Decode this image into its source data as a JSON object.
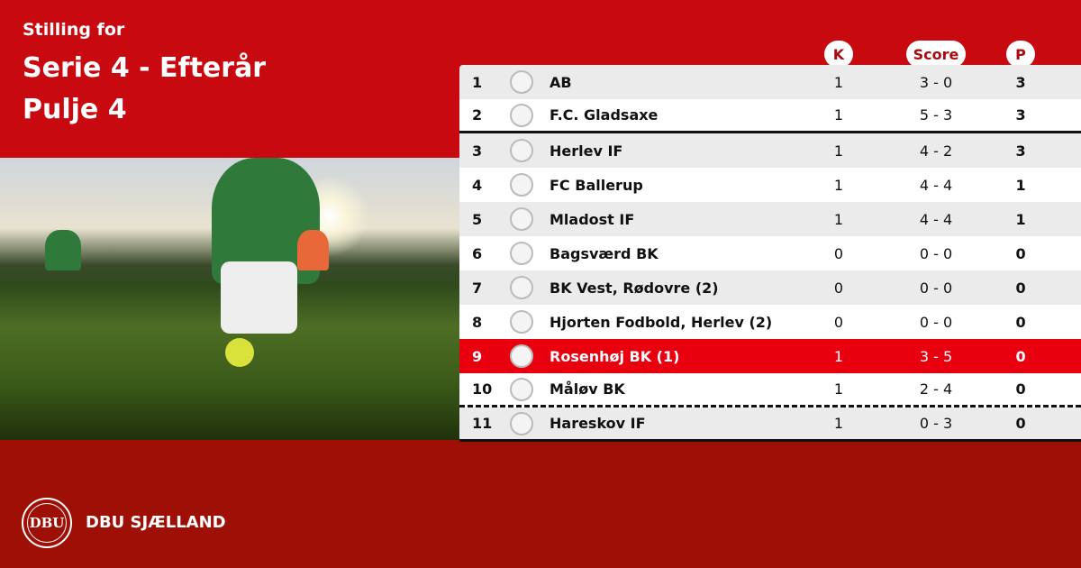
{
  "header": {
    "subtitle": "Stilling for",
    "title_line1": "Serie 4 - Efterår",
    "title_line2": "Pulje 4"
  },
  "columns": {
    "k": "K",
    "score": "Score",
    "p": "P"
  },
  "rows": [
    {
      "pos": "1",
      "team": "AB",
      "k": "1",
      "score": "3 - 0",
      "p": "3"
    },
    {
      "pos": "2",
      "team": "F.C. Gladsaxe",
      "k": "1",
      "score": "5 - 3",
      "p": "3"
    },
    {
      "pos": "3",
      "team": "Herlev IF",
      "k": "1",
      "score": "4 - 2",
      "p": "3"
    },
    {
      "pos": "4",
      "team": "FC Ballerup",
      "k": "1",
      "score": "4 - 4",
      "p": "1"
    },
    {
      "pos": "5",
      "team": "Mladost IF",
      "k": "1",
      "score": "4 - 4",
      "p": "1"
    },
    {
      "pos": "6",
      "team": "Bagsværd BK",
      "k": "0",
      "score": "0 - 0",
      "p": "0"
    },
    {
      "pos": "7",
      "team": "BK Vest, Rødovre (2)",
      "k": "0",
      "score": "0 - 0",
      "p": "0"
    },
    {
      "pos": "8",
      "team": "Hjorten Fodbold, Herlev (2)",
      "k": "0",
      "score": "0 - 0",
      "p": "0"
    },
    {
      "pos": "9",
      "team": "Rosenhøj BK (1)",
      "k": "1",
      "score": "3 - 5",
      "p": "0"
    },
    {
      "pos": "10",
      "team": "Måløv BK",
      "k": "1",
      "score": "2 - 4",
      "p": "0"
    },
    {
      "pos": "11",
      "team": "Hareskov IF",
      "k": "1",
      "score": "0 - 3",
      "p": "0"
    }
  ],
  "footer": {
    "brand": "DBU SJÆLLAND",
    "logo_text": "DBU"
  },
  "colors": {
    "primary": "#c8090f",
    "footer": "#9e0f06",
    "highlight": "#e8000f"
  }
}
